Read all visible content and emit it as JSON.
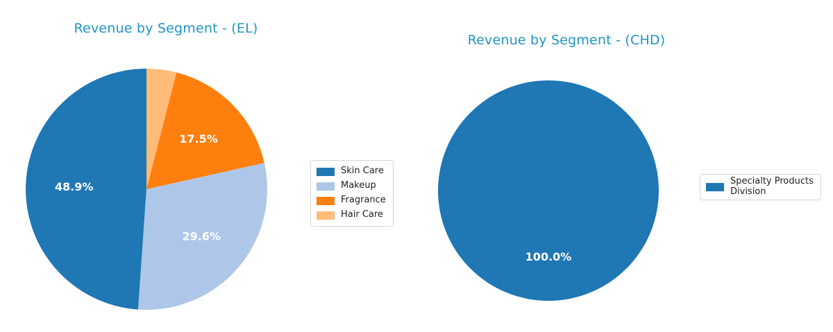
{
  "figure": {
    "background": "#ffffff",
    "title_color": "#2094c5",
    "legend_border_color": "#d6d6d6",
    "pct_label_color": "#ffffff"
  },
  "chart_data": [
    {
      "type": "pie",
      "title": "Revenue by Segment - (EL)",
      "labels": [
        "Skin Care",
        "Makeup",
        "Fragrance",
        "Hair Care"
      ],
      "values": [
        48.9,
        29.6,
        17.5,
        4.0
      ],
      "pct_labels": [
        "48.9%",
        "29.6%",
        "17.5%",
        ""
      ],
      "colors": [
        "#1f77b4",
        "#aec7e8",
        "#ff7f0e",
        "#ffbb78"
      ],
      "start_angle": 90,
      "counterclockwise": true,
      "label_radius_fraction": 0.6,
      "legend_position": "right"
    },
    {
      "type": "pie",
      "title": "Revenue by Segment - (CHD)",
      "labels": [
        "Specialty Products\nDivision"
      ],
      "values": [
        100.0
      ],
      "pct_labels": [
        "100.0%"
      ],
      "colors": [
        "#1f77b4"
      ],
      "start_angle": 90,
      "counterclockwise": true,
      "label_radius_fraction": 0.6,
      "legend_position": "right"
    }
  ]
}
